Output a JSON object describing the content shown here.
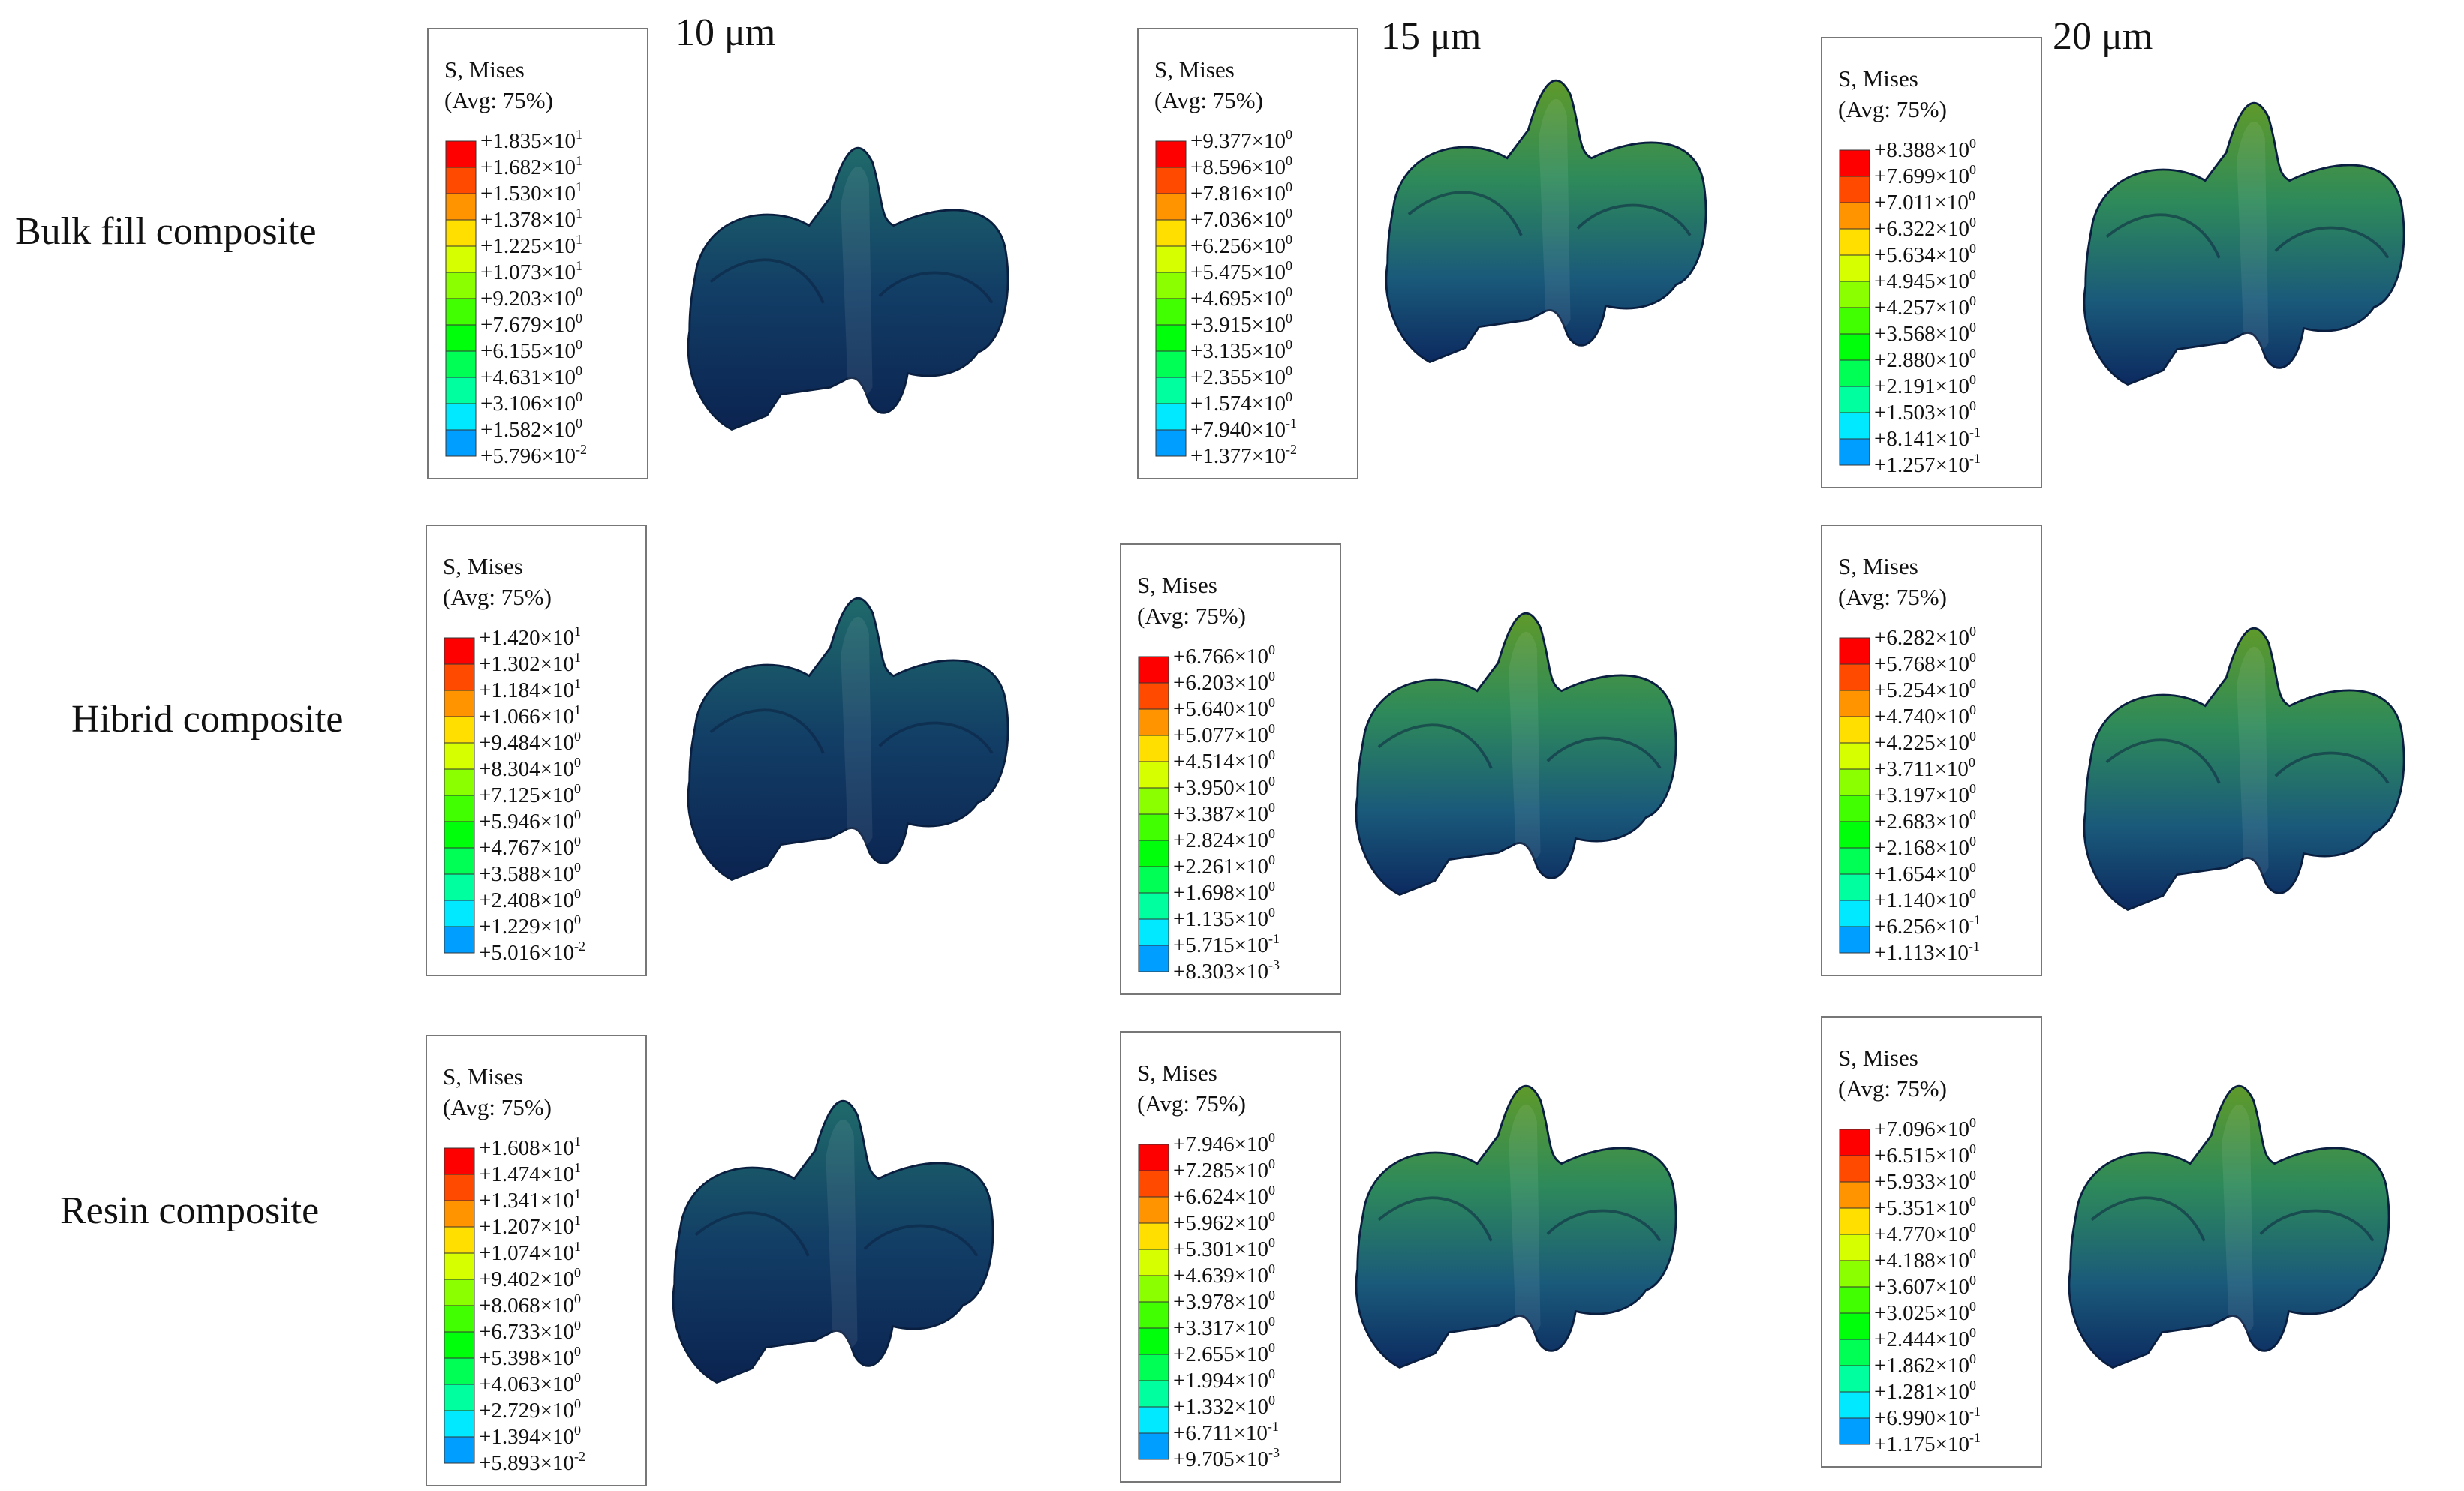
{
  "columns": [
    "10 μm",
    "15 μm",
    "20 μm"
  ],
  "rows": [
    "Bulk fill composite",
    "Hibrid composite",
    "Resin composite"
  ],
  "legends": [
    {
      "title": "S, Mises",
      "subtitle": "(Avg: 75%)",
      "values": [
        [
          "+1.835×10",
          "1"
        ],
        [
          "+1.682×10",
          "1"
        ],
        [
          "+1.530×10",
          "1"
        ],
        [
          "+1.378×10",
          "1"
        ],
        [
          "+1.225×10",
          "1"
        ],
        [
          "+1.073×10",
          "1"
        ],
        [
          "+9.203×10",
          "0"
        ],
        [
          "+7.679×10",
          "0"
        ],
        [
          "+6.155×10",
          "0"
        ],
        [
          "+4.631×10",
          "0"
        ],
        [
          "+3.106×10",
          "0"
        ],
        [
          "+1.582×10",
          "0"
        ],
        [
          "+5.796×10",
          "-2"
        ]
      ]
    },
    {
      "title": "S, Mises",
      "subtitle": "(Avg: 75%)",
      "values": [
        [
          "+9.377×10",
          "0"
        ],
        [
          "+8.596×10",
          "0"
        ],
        [
          "+7.816×10",
          "0"
        ],
        [
          "+7.036×10",
          "0"
        ],
        [
          "+6.256×10",
          "0"
        ],
        [
          "+5.475×10",
          "0"
        ],
        [
          "+4.695×10",
          "0"
        ],
        [
          "+3.915×10",
          "0"
        ],
        [
          "+3.135×10",
          "0"
        ],
        [
          "+2.355×10",
          "0"
        ],
        [
          "+1.574×10",
          "0"
        ],
        [
          "+7.940×10",
          "-1"
        ],
        [
          "+1.377×10",
          "-2"
        ]
      ]
    },
    {
      "title": "S, Mises",
      "subtitle": "(Avg: 75%)",
      "values": [
        [
          "+8.388×10",
          "0"
        ],
        [
          "+7.699×10",
          "0"
        ],
        [
          "+7.011×10",
          "0"
        ],
        [
          "+6.322×10",
          "0"
        ],
        [
          "+5.634×10",
          "0"
        ],
        [
          "+4.945×10",
          "0"
        ],
        [
          "+4.257×10",
          "0"
        ],
        [
          "+3.568×10",
          "0"
        ],
        [
          "+2.880×10",
          "0"
        ],
        [
          "+2.191×10",
          "0"
        ],
        [
          "+1.503×10",
          "0"
        ],
        [
          "+8.141×10",
          "-1"
        ],
        [
          "+1.257×10",
          "-1"
        ]
      ]
    },
    {
      "title": "S, Mises",
      "subtitle": "(Avg: 75%)",
      "values": [
        [
          "+1.420×10",
          "1"
        ],
        [
          "+1.302×10",
          "1"
        ],
        [
          "+1.184×10",
          "1"
        ],
        [
          "+1.066×10",
          "1"
        ],
        [
          "+9.484×10",
          "0"
        ],
        [
          "+8.304×10",
          "0"
        ],
        [
          "+7.125×10",
          "0"
        ],
        [
          "+5.946×10",
          "0"
        ],
        [
          "+4.767×10",
          "0"
        ],
        [
          "+3.588×10",
          "0"
        ],
        [
          "+2.408×10",
          "0"
        ],
        [
          "+1.229×10",
          "0"
        ],
        [
          "+5.016×10",
          "-2"
        ]
      ]
    },
    {
      "title": "S, Mises",
      "subtitle": "(Avg: 75%)",
      "values": [
        [
          "+6.766×10",
          "0"
        ],
        [
          "+6.203×10",
          "0"
        ],
        [
          "+5.640×10",
          "0"
        ],
        [
          "+5.077×10",
          "0"
        ],
        [
          "+4.514×10",
          "0"
        ],
        [
          "+3.950×10",
          "0"
        ],
        [
          "+3.387×10",
          "0"
        ],
        [
          "+2.824×10",
          "0"
        ],
        [
          "+2.261×10",
          "0"
        ],
        [
          "+1.698×10",
          "0"
        ],
        [
          "+1.135×10",
          "0"
        ],
        [
          "+5.715×10",
          "-1"
        ],
        [
          "+8.303×10",
          "-3"
        ]
      ]
    },
    {
      "title": "S, Mises",
      "subtitle": "(Avg: 75%)",
      "values": [
        [
          "+6.282×10",
          "0"
        ],
        [
          "+5.768×10",
          "0"
        ],
        [
          "+5.254×10",
          "0"
        ],
        [
          "+4.740×10",
          "0"
        ],
        [
          "+4.225×10",
          "0"
        ],
        [
          "+3.711×10",
          "0"
        ],
        [
          "+3.197×10",
          "0"
        ],
        [
          "+2.683×10",
          "0"
        ],
        [
          "+2.168×10",
          "0"
        ],
        [
          "+1.654×10",
          "0"
        ],
        [
          "+1.140×10",
          "0"
        ],
        [
          "+6.256×10",
          "-1"
        ],
        [
          "+1.113×10",
          "-1"
        ]
      ]
    },
    {
      "title": "S, Mises",
      "subtitle": "(Avg: 75%)",
      "values": [
        [
          "+1.608×10",
          "1"
        ],
        [
          "+1.474×10",
          "1"
        ],
        [
          "+1.341×10",
          "1"
        ],
        [
          "+1.207×10",
          "1"
        ],
        [
          "+1.074×10",
          "1"
        ],
        [
          "+9.402×10",
          "0"
        ],
        [
          "+8.068×10",
          "0"
        ],
        [
          "+6.733×10",
          "0"
        ],
        [
          "+5.398×10",
          "0"
        ],
        [
          "+4.063×10",
          "0"
        ],
        [
          "+2.729×10",
          "0"
        ],
        [
          "+1.394×10",
          "0"
        ],
        [
          "+5.893×10",
          "-2"
        ]
      ]
    },
    {
      "title": "S, Mises",
      "subtitle": "(Avg: 75%)",
      "values": [
        [
          "+7.946×10",
          "0"
        ],
        [
          "+7.285×10",
          "0"
        ],
        [
          "+6.624×10",
          "0"
        ],
        [
          "+5.962×10",
          "0"
        ],
        [
          "+5.301×10",
          "0"
        ],
        [
          "+4.639×10",
          "0"
        ],
        [
          "+3.978×10",
          "0"
        ],
        [
          "+3.317×10",
          "0"
        ],
        [
          "+2.655×10",
          "0"
        ],
        [
          "+1.994×10",
          "0"
        ],
        [
          "+1.332×10",
          "0"
        ],
        [
          "+6.711×10",
          "-1"
        ],
        [
          "+9.705×10",
          "-3"
        ]
      ]
    },
    {
      "title": "S, Mises",
      "subtitle": "(Avg: 75%)",
      "values": [
        [
          "+7.096×10",
          "0"
        ],
        [
          "+6.515×10",
          "0"
        ],
        [
          "+5.933×10",
          "0"
        ],
        [
          "+5.351×10",
          "0"
        ],
        [
          "+4.770×10",
          "0"
        ],
        [
          "+4.188×10",
          "0"
        ],
        [
          "+3.607×10",
          "0"
        ],
        [
          "+3.025×10",
          "0"
        ],
        [
          "+2.444×10",
          "0"
        ],
        [
          "+1.862×10",
          "0"
        ],
        [
          "+1.281×10",
          "0"
        ],
        [
          "+6.990×10",
          "-1"
        ],
        [
          "+1.175×10",
          "-1"
        ]
      ]
    }
  ]
}
